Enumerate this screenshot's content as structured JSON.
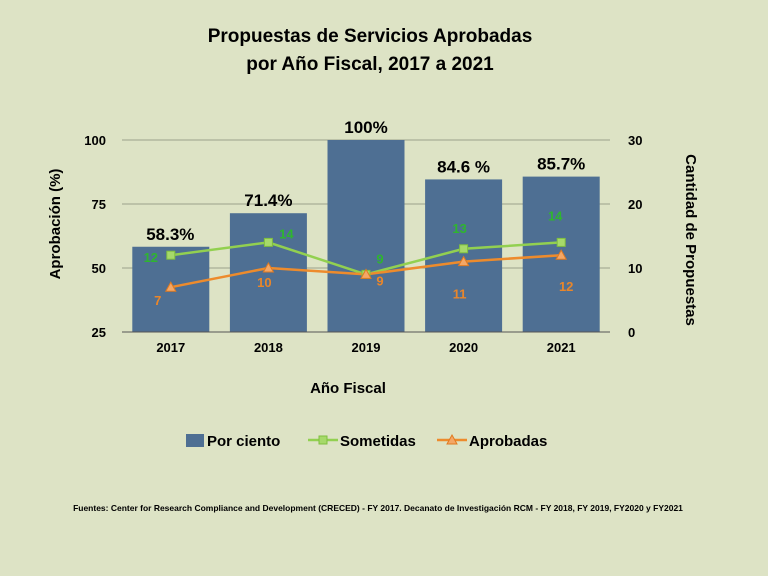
{
  "chart_data": {
    "type": "bar",
    "title_line1": "Propuestas de Servicios Aprobadas",
    "title_line2": "por Año Fiscal, 2017 a 2021",
    "xlabel": "Año Fiscal",
    "ylabel_left": "Aprobación (%)",
    "ylabel_right": "Cantidad de Propuestas",
    "categories": [
      "2017",
      "2018",
      "2019",
      "2020",
      "2021"
    ],
    "ylim_left": [
      25,
      100
    ],
    "yticks_left": [
      "25",
      "50",
      "75",
      "100"
    ],
    "ylim_right": [
      0,
      30
    ],
    "yticks_right": [
      "0",
      "10",
      "20",
      "30"
    ],
    "grid": true,
    "legend_position": "bottom",
    "series": [
      {
        "name": "Por ciento",
        "type": "bar",
        "axis": "left",
        "color": "#4e6f93",
        "values": [
          58.3,
          71.4,
          100,
          84.6,
          85.7
        ],
        "labels": [
          "58.3%",
          "71.4%",
          "100%",
          "84.6 %",
          "85.7%"
        ]
      },
      {
        "name": "Sometidas",
        "type": "line",
        "axis": "right",
        "color": "#92d050",
        "label_color": "#2fb52f",
        "marker": "square",
        "values": [
          12,
          14,
          9,
          13,
          14
        ],
        "labels": [
          "12",
          "14",
          "9",
          "13",
          "14"
        ]
      },
      {
        "name": "Aprobadas",
        "type": "line",
        "axis": "right",
        "color": "#ed8b2c",
        "label_color": "#e9862a",
        "marker": "triangle",
        "values": [
          7,
          10,
          9,
          11,
          12
        ],
        "labels": [
          "7",
          "10",
          "9",
          "11",
          "12"
        ]
      }
    ]
  },
  "footer": {
    "source": "Fuentes: Center for Research Compliance and Development (CRECED) - FY 2017.  Decanato de Investigación RCM - FY 2018, FY 2019, FY2020 y FY2021"
  }
}
